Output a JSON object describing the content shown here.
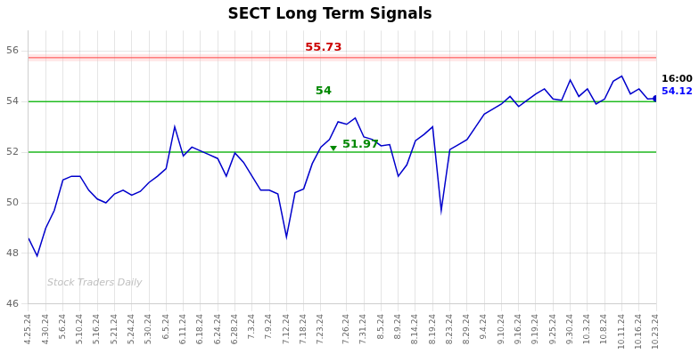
{
  "chart_data": {
    "type": "line",
    "title": "SECT Long Term Signals",
    "categories": [
      "4.25.24",
      null,
      "4.30.24",
      null,
      "5.6.24",
      null,
      "5.10.24",
      null,
      "5.16.24",
      null,
      "5.21.24",
      null,
      "5.24.24",
      null,
      "5.30.24",
      null,
      "6.5.24",
      null,
      "6.11.24",
      null,
      "6.18.24",
      null,
      "6.24.24",
      null,
      "6.28.24",
      null,
      "7.3.24",
      null,
      "7.9.24",
      null,
      "7.12.24",
      null,
      "7.18.24",
      null,
      "7.23.24",
      null,
      null,
      "7.26.24",
      null,
      "7.31.24",
      null,
      "8.5.24",
      null,
      "8.9.24",
      null,
      "8.14.24",
      null,
      "8.19.24",
      null,
      "8.23.24",
      null,
      "8.29.24",
      null,
      "9.4.24",
      null,
      "9.10.24",
      null,
      "9.16.24",
      null,
      "9.19.24",
      null,
      "9.25.24",
      null,
      "9.30.24",
      null,
      "10.3.24",
      null,
      "10.8.24",
      null,
      "10.11.24",
      null,
      "10.16.24",
      null,
      "10.23.24"
    ],
    "values": [
      48.6,
      47.9,
      49.0,
      49.7,
      50.9,
      51.05,
      51.05,
      50.5,
      50.15,
      50.0,
      50.35,
      50.5,
      50.3,
      50.45,
      50.8,
      51.05,
      51.35,
      53.0,
      51.85,
      52.2,
      52.05,
      51.9,
      51.75,
      51.05,
      51.97,
      51.6,
      51.05,
      50.5,
      50.5,
      50.35,
      48.65,
      50.4,
      50.55,
      51.55,
      52.2,
      52.5,
      53.2,
      53.1,
      53.35,
      52.6,
      52.5,
      52.25,
      52.3,
      51.05,
      51.5,
      52.45,
      52.7,
      53.0,
      49.7,
      52.1,
      52.3,
      52.5,
      53.0,
      53.5,
      53.7,
      53.9,
      54.2,
      53.8,
      54.05,
      54.3,
      54.5,
      54.1,
      54.05,
      54.85,
      54.2,
      54.5,
      53.9,
      54.1,
      54.8,
      55.0,
      54.3,
      54.5,
      54.1,
      54.12
    ],
    "color": "#0000cc",
    "ylim": [
      46,
      56.8
    ],
    "yticks": [
      46,
      48,
      50,
      52,
      54,
      56
    ],
    "grid": true,
    "lines": [
      {
        "y": 55.73,
        "color": "#ff4444"
      },
      {
        "y": 54,
        "color": "#22bb22"
      },
      {
        "y": 52,
        "color": "#22bb22"
      }
    ],
    "annotations": [
      {
        "text": "55.73",
        "y": 55.73,
        "color": "#cc0000"
      },
      {
        "text": "54",
        "y": 54,
        "color": "#008800"
      },
      {
        "text": "51.97",
        "y": 51.97,
        "color": "#008800",
        "marker": "triangle-down"
      },
      {
        "text": "16:00",
        "color": "#000000"
      },
      {
        "text": "54.12",
        "y": 54.12,
        "color": "#0000ff"
      }
    ],
    "watermark": {
      "text": "Stock Traders Daily",
      "color": "#c0c0c0"
    }
  }
}
